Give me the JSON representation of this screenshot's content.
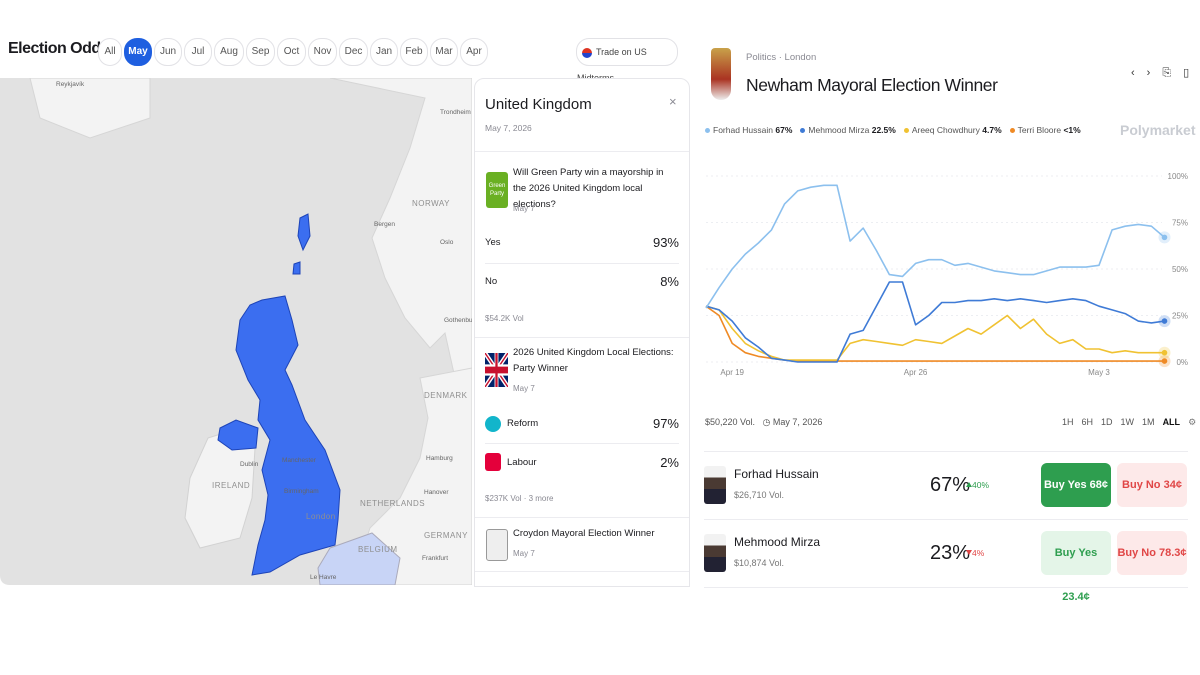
{
  "header": {
    "title": "Election Odds",
    "months": [
      "All",
      "May",
      "Jun",
      "Jul",
      "Aug",
      "Sep",
      "Oct",
      "Nov",
      "Dec",
      "Jan",
      "Feb",
      "Mar",
      "Apr"
    ],
    "selected": "May",
    "cta": "Trade on US Midterms"
  },
  "map": {
    "labels": [
      "Reykjavík",
      "Trondheim",
      "Bergen",
      "NORWAY",
      "Oslo",
      "Gothenburg",
      "DENMARK",
      "Hamburg",
      "Hanover",
      "IRELAND",
      "Dublin",
      "Manchester",
      "Birmingham",
      "London",
      "NETHERLANDS",
      "GERMANY",
      "BELGIUM",
      "Frankfurt",
      "Le Havre"
    ]
  },
  "popup": {
    "title": "United Kingdom",
    "date": "May 7, 2026",
    "markets": [
      {
        "title": "Will Green Party win a mayorship in the 2026 United Kingdom local elections?",
        "date": "May 7",
        "icon": "Green Party",
        "outcomes": [
          {
            "name": "Yes",
            "value": "93%"
          },
          {
            "name": "No",
            "value": "8%"
          }
        ],
        "volume": "$54.2K Vol"
      },
      {
        "title": "2026 United Kingdom Local Elections: Party Winner",
        "date": "May 7",
        "outcomes": [
          {
            "name": "Reform",
            "value": "97%"
          },
          {
            "name": "Labour",
            "value": "2%"
          }
        ],
        "volume": "$237K Vol",
        "more": "3 more"
      },
      {
        "title": "Croydon Mayoral Election Winner",
        "date": "May 7"
      }
    ]
  },
  "market": {
    "breadcrumb": "Politics · London",
    "title": "Newham Mayoral Election Winner",
    "brand": "Polymarket",
    "volume": "$50,220 Vol.",
    "end_date": "May 7, 2026",
    "ranges": [
      "1H",
      "6H",
      "1D",
      "1W",
      "1M",
      "ALL"
    ],
    "selected_range": "ALL",
    "outcomes": [
      {
        "name": "Forhad Hussain",
        "volume": "$26,710 Vol.",
        "chance": "67%",
        "change": "40%",
        "direction": "up",
        "buy_yes": "Buy Yes 68¢",
        "buy_no": "Buy No 34¢"
      },
      {
        "name": "Mehmood Mirza",
        "volume": "$10,874 Vol.",
        "chance": "23%",
        "change": "4%",
        "direction": "down",
        "buy_yes": "Buy Yes 23.4¢",
        "buy_no": "Buy No 78.3¢"
      }
    ]
  },
  "chart_data": {
    "type": "line",
    "categories": [
      null,
      null,
      "Apr 19",
      null,
      null,
      null,
      null,
      null,
      null,
      null,
      null,
      null,
      null,
      null,
      null,
      null,
      "Apr 26",
      null,
      null,
      null,
      null,
      null,
      null,
      null,
      null,
      null,
      null,
      null,
      null,
      null,
      "May 3",
      null,
      null,
      null,
      null,
      null
    ],
    "ylim": [
      0,
      100
    ],
    "yticks": [
      {
        "value": 0,
        "label": "0%"
      },
      {
        "value": 25,
        "label": "25%"
      },
      {
        "value": 50,
        "label": "50%"
      },
      {
        "value": 75,
        "label": "75%"
      },
      {
        "value": 100,
        "label": "100%"
      }
    ],
    "grid": true,
    "series": [
      {
        "name": "Forhad Hussain",
        "current": "67%",
        "color": "#8cc0ee",
        "values": [
          29,
          40,
          50,
          58,
          64,
          71,
          85,
          92,
          94,
          95,
          95,
          65,
          72,
          60,
          47,
          46,
          53,
          55,
          55,
          52,
          53,
          51,
          49,
          48,
          47,
          47,
          49,
          51,
          51,
          51,
          52,
          71,
          73,
          74,
          73,
          67
        ]
      },
      {
        "name": "Mehmood Mirza",
        "current": "22.5%",
        "color": "#3f7bd6",
        "values": [
          30,
          28,
          22,
          13,
          8,
          2,
          1,
          0,
          0,
          0,
          0,
          15,
          17,
          30,
          43,
          43,
          20,
          25,
          32,
          32,
          33,
          33,
          34,
          33,
          34,
          33,
          32,
          33,
          34,
          33,
          30,
          28,
          26,
          22,
          21,
          22
        ]
      },
      {
        "name": "Areeq Chowdhury",
        "current": "4.7%",
        "color": "#f0c232",
        "values": [
          30,
          28,
          18,
          10,
          6,
          3,
          1,
          1,
          1,
          1,
          1,
          10,
          12,
          11,
          10,
          9,
          12,
          11,
          10,
          14,
          18,
          15,
          20,
          25,
          18,
          23,
          15,
          10,
          12,
          7,
          7,
          5,
          6,
          5,
          5,
          5
        ]
      },
      {
        "name": "Terri Bloore",
        "current": "<1%",
        "color": "#ef8a25",
        "values": [
          30,
          25,
          10,
          5,
          3,
          2,
          1,
          0.5,
          0.5,
          0.5,
          0.5,
          0.5,
          0.5,
          0.5,
          0.5,
          0.5,
          0.5,
          0.5,
          0.5,
          0.5,
          0.5,
          0.5,
          0.5,
          0.5,
          0.5,
          0.5,
          0.5,
          0.5,
          0.5,
          0.5,
          0.5,
          0.5,
          0.5,
          0.5,
          0.5,
          0.5
        ]
      }
    ]
  }
}
